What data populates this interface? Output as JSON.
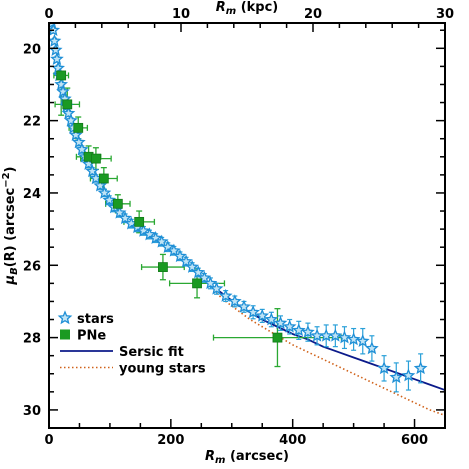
{
  "chart_data": {
    "type": "scatter",
    "xlabel_main": "R",
    "xlabel_sub": "m",
    "xlabel_unit": " (arcsec)",
    "x2label_main": "R",
    "x2label_sub": "m",
    "x2label_unit": " (kpc)",
    "ylabel_prefix": "μ",
    "ylabel_sub": "B",
    "ylabel_suffix": "(R) (arcsec",
    "ylabel_sup": "−2",
    "ylabel_close": ")",
    "xlim": [
      0,
      650
    ],
    "ylim": [
      30.5,
      19.3
    ],
    "x2lim": [
      0,
      30
    ],
    "x_ticks": [
      0,
      200,
      400,
      600
    ],
    "x_tick_labels": [
      "0",
      "200",
      "400",
      "600"
    ],
    "x2_ticks": [
      0,
      10,
      20,
      30
    ],
    "x2_tick_labels": [
      "0",
      "10",
      "20",
      "30"
    ],
    "y_ticks": [
      20,
      22,
      24,
      26,
      28,
      30
    ],
    "y_tick_labels": [
      "20",
      "22",
      "24",
      "26",
      "28",
      "30"
    ],
    "series": [
      {
        "name": "stars",
        "marker": "star",
        "color": "#1f8fd6",
        "error_color": "#2aa0d8",
        "points": [
          [
            5,
            19.3,
            0.08
          ],
          [
            7,
            19.5,
            0.08
          ],
          [
            9,
            19.8,
            0.08
          ],
          [
            11,
            20.05,
            0.08
          ],
          [
            13,
            20.3,
            0.08
          ],
          [
            15,
            20.55,
            0.08
          ],
          [
            17,
            20.75,
            0.08
          ],
          [
            20,
            21.0,
            0.08
          ],
          [
            23,
            21.2,
            0.08
          ],
          [
            26,
            21.4,
            0.08
          ],
          [
            29,
            21.6,
            0.08
          ],
          [
            32,
            21.8,
            0.08
          ],
          [
            36,
            22.0,
            0.08
          ],
          [
            40,
            22.2,
            0.08
          ],
          [
            44,
            22.4,
            0.08
          ],
          [
            49,
            22.6,
            0.1
          ],
          [
            54,
            22.8,
            0.1
          ],
          [
            59,
            23.0,
            0.1
          ],
          [
            65,
            23.2,
            0.1
          ],
          [
            71,
            23.4,
            0.1
          ],
          [
            77,
            23.6,
            0.1
          ],
          [
            84,
            23.8,
            0.1
          ],
          [
            91,
            24.0,
            0.1
          ],
          [
            99,
            24.2,
            0.12
          ],
          [
            107,
            24.4,
            0.12
          ],
          [
            116,
            24.55,
            0.12
          ],
          [
            125,
            24.7,
            0.12
          ],
          [
            135,
            24.85,
            0.12
          ],
          [
            145,
            24.95,
            0.12
          ],
          [
            155,
            25.05,
            0.12
          ],
          [
            165,
            25.15,
            0.12
          ],
          [
            175,
            25.25,
            0.12
          ],
          [
            185,
            25.35,
            0.12
          ],
          [
            195,
            25.5,
            0.12
          ],
          [
            205,
            25.6,
            0.12
          ],
          [
            215,
            25.75,
            0.12
          ],
          [
            225,
            25.9,
            0.12
          ],
          [
            235,
            26.05,
            0.12
          ],
          [
            245,
            26.2,
            0.12
          ],
          [
            255,
            26.35,
            0.12
          ],
          [
            265,
            26.5,
            0.15
          ],
          [
            275,
            26.65,
            0.15
          ],
          [
            290,
            26.85,
            0.15
          ],
          [
            305,
            27.0,
            0.15
          ],
          [
            320,
            27.15,
            0.15
          ],
          [
            335,
            27.3,
            0.18
          ],
          [
            350,
            27.4,
            0.18
          ],
          [
            365,
            27.5,
            0.2
          ],
          [
            380,
            27.6,
            0.2
          ],
          [
            395,
            27.7,
            0.2
          ],
          [
            410,
            27.8,
            0.25
          ],
          [
            425,
            27.85,
            0.25
          ],
          [
            440,
            27.95,
            0.25
          ],
          [
            455,
            27.95,
            0.3
          ],
          [
            470,
            27.95,
            0.3
          ],
          [
            485,
            28.0,
            0.3
          ],
          [
            500,
            28.05,
            0.3
          ],
          [
            515,
            28.1,
            0.35
          ],
          [
            530,
            28.3,
            0.35
          ],
          [
            550,
            28.85,
            0.35
          ],
          [
            570,
            29.1,
            0.4
          ],
          [
            590,
            29.05,
            0.4
          ],
          [
            610,
            28.85,
            0.4
          ]
        ]
      },
      {
        "name": "PNe",
        "marker": "square",
        "color": "#1a9a22",
        "error_color": "#2aa832",
        "points": [
          [
            20,
            20.75,
            0,
            1.1,
            12
          ],
          [
            30,
            21.55,
            0.45,
            0.25,
            20
          ],
          [
            48,
            22.2,
            0.3,
            0.3,
            15
          ],
          [
            65,
            23.0,
            0.3,
            0.3,
            20
          ],
          [
            77,
            23.05,
            0.3,
            0.3,
            25
          ],
          [
            90,
            23.6,
            0.3,
            0.3,
            22
          ],
          [
            113,
            24.3,
            0.25,
            0.25,
            20
          ],
          [
            148,
            24.8,
            0.3,
            0.3,
            25
          ],
          [
            187,
            26.05,
            0.35,
            0.35,
            35
          ],
          [
            243,
            26.5,
            0.4,
            0.4,
            45
          ],
          [
            375,
            28.0,
            0.8,
            0.8,
            105
          ]
        ]
      },
      {
        "name": "Sersic fit",
        "type": "line",
        "style": "solid",
        "color": "#0b1a8a",
        "curve": [
          [
            270,
            26.6
          ],
          [
            290,
            26.85
          ],
          [
            310,
            27.1
          ],
          [
            330,
            27.3
          ],
          [
            350,
            27.5
          ],
          [
            375,
            27.7
          ],
          [
            400,
            27.9
          ],
          [
            425,
            28.05
          ],
          [
            450,
            28.25
          ],
          [
            475,
            28.4
          ],
          [
            500,
            28.55
          ],
          [
            525,
            28.7
          ],
          [
            550,
            28.85
          ],
          [
            575,
            29.0
          ],
          [
            600,
            29.15
          ],
          [
            625,
            29.3
          ],
          [
            650,
            29.45
          ]
        ]
      },
      {
        "name": "young stars",
        "type": "line",
        "style": "dotted",
        "color": "#d0621a",
        "curve": [
          [
            270,
            26.7
          ],
          [
            290,
            27.0
          ],
          [
            310,
            27.25
          ],
          [
            330,
            27.5
          ],
          [
            350,
            27.7
          ],
          [
            375,
            27.95
          ],
          [
            400,
            28.2
          ],
          [
            425,
            28.4
          ],
          [
            450,
            28.6
          ],
          [
            475,
            28.8
          ],
          [
            500,
            29.0
          ],
          [
            525,
            29.2
          ],
          [
            550,
            29.4
          ],
          [
            575,
            29.6
          ],
          [
            600,
            29.8
          ],
          [
            625,
            30.0
          ],
          [
            650,
            30.15
          ]
        ]
      }
    ],
    "legend": {
      "placement": "bottom-left",
      "items": [
        {
          "label": "stars",
          "marker": "star",
          "color": "#1f8fd6"
        },
        {
          "label": "PNe",
          "marker": "square",
          "color": "#1a9a22"
        },
        {
          "label": "Sersic fit",
          "marker": "solid-line",
          "color": "#0b1a8a"
        },
        {
          "label": "young stars",
          "marker": "dotted-line",
          "color": "#d0621a"
        }
      ]
    }
  }
}
